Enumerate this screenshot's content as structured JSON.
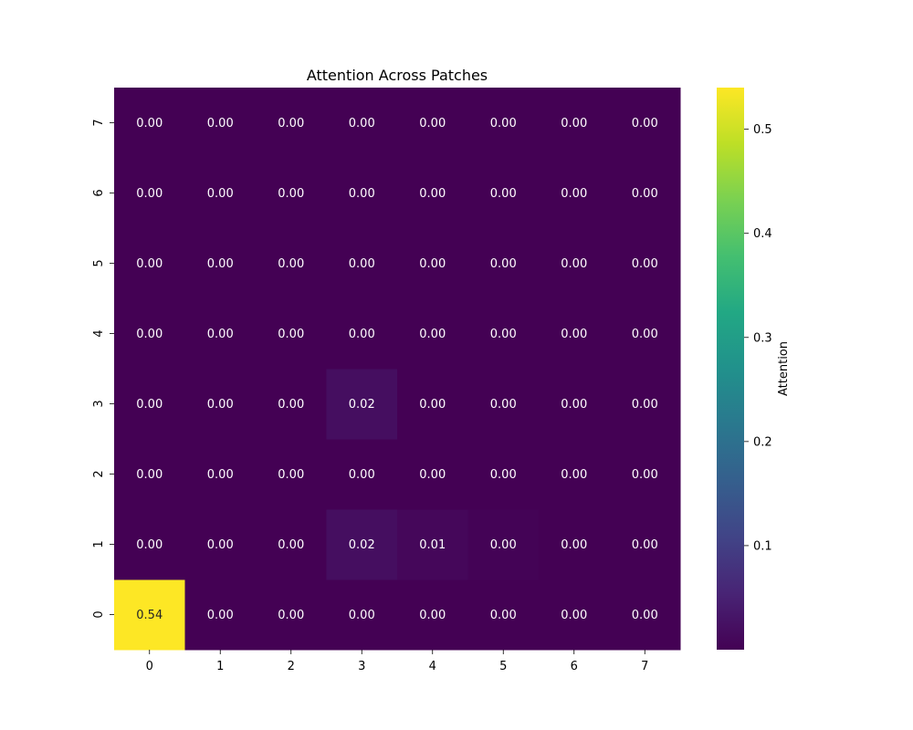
{
  "chart_data": {
    "type": "heatmap",
    "title": "Attention Across Patches",
    "x_categories": [
      "0",
      "1",
      "2",
      "3",
      "4",
      "5",
      "6",
      "7"
    ],
    "y_categories": [
      "0",
      "1",
      "2",
      "3",
      "4",
      "5",
      "6",
      "7"
    ],
    "values": [
      [
        0.54,
        0.0,
        0.0,
        0.0,
        0.0,
        0.0,
        0.0,
        0.0
      ],
      [
        0.0,
        0.0,
        0.0,
        0.02,
        0.01,
        0.003,
        0.0,
        0.0
      ],
      [
        0.0,
        0.0,
        0.0,
        0.0,
        0.0,
        0.0,
        0.0,
        0.0
      ],
      [
        0.0,
        0.0,
        0.0,
        0.02,
        0.0,
        0.0,
        0.0,
        0.0
      ],
      [
        0.0,
        0.0,
        0.0,
        0.0,
        0.0,
        0.0,
        0.0,
        0.0
      ],
      [
        0.0,
        0.0,
        0.0,
        0.0,
        0.0,
        0.0,
        0.0,
        0.0
      ],
      [
        0.0,
        0.0,
        0.0,
        0.0,
        0.0,
        0.0,
        0.0,
        0.0
      ],
      [
        0.0,
        0.0,
        0.0,
        0.0,
        0.0,
        0.0,
        0.0,
        0.0
      ]
    ],
    "annotations": [
      [
        "0.54",
        "0.00",
        "0.00",
        "0.00",
        "0.00",
        "0.00",
        "0.00",
        "0.00"
      ],
      [
        "0.00",
        "0.00",
        "0.00",
        "0.02",
        "0.01",
        "0.00",
        "0.00",
        "0.00"
      ],
      [
        "0.00",
        "0.00",
        "0.00",
        "0.00",
        "0.00",
        "0.00",
        "0.00",
        "0.00"
      ],
      [
        "0.00",
        "0.00",
        "0.00",
        "0.02",
        "0.00",
        "0.00",
        "0.00",
        "0.00"
      ],
      [
        "0.00",
        "0.00",
        "0.00",
        "0.00",
        "0.00",
        "0.00",
        "0.00",
        "0.00"
      ],
      [
        "0.00",
        "0.00",
        "0.00",
        "0.00",
        "0.00",
        "0.00",
        "0.00",
        "0.00"
      ],
      [
        "0.00",
        "0.00",
        "0.00",
        "0.00",
        "0.00",
        "0.00",
        "0.00",
        "0.00"
      ],
      [
        "0.00",
        "0.00",
        "0.00",
        "0.00",
        "0.00",
        "0.00",
        "0.00",
        "0.00"
      ]
    ],
    "colormap": "viridis",
    "colorbar": {
      "label": "Attention",
      "range": [
        0.0,
        0.54
      ],
      "ticks": [
        0.1,
        0.2,
        0.3,
        0.4,
        0.5
      ],
      "tick_labels": [
        "0.1",
        "0.2",
        "0.3",
        "0.4",
        "0.5"
      ]
    },
    "y_origin": "bottom"
  }
}
